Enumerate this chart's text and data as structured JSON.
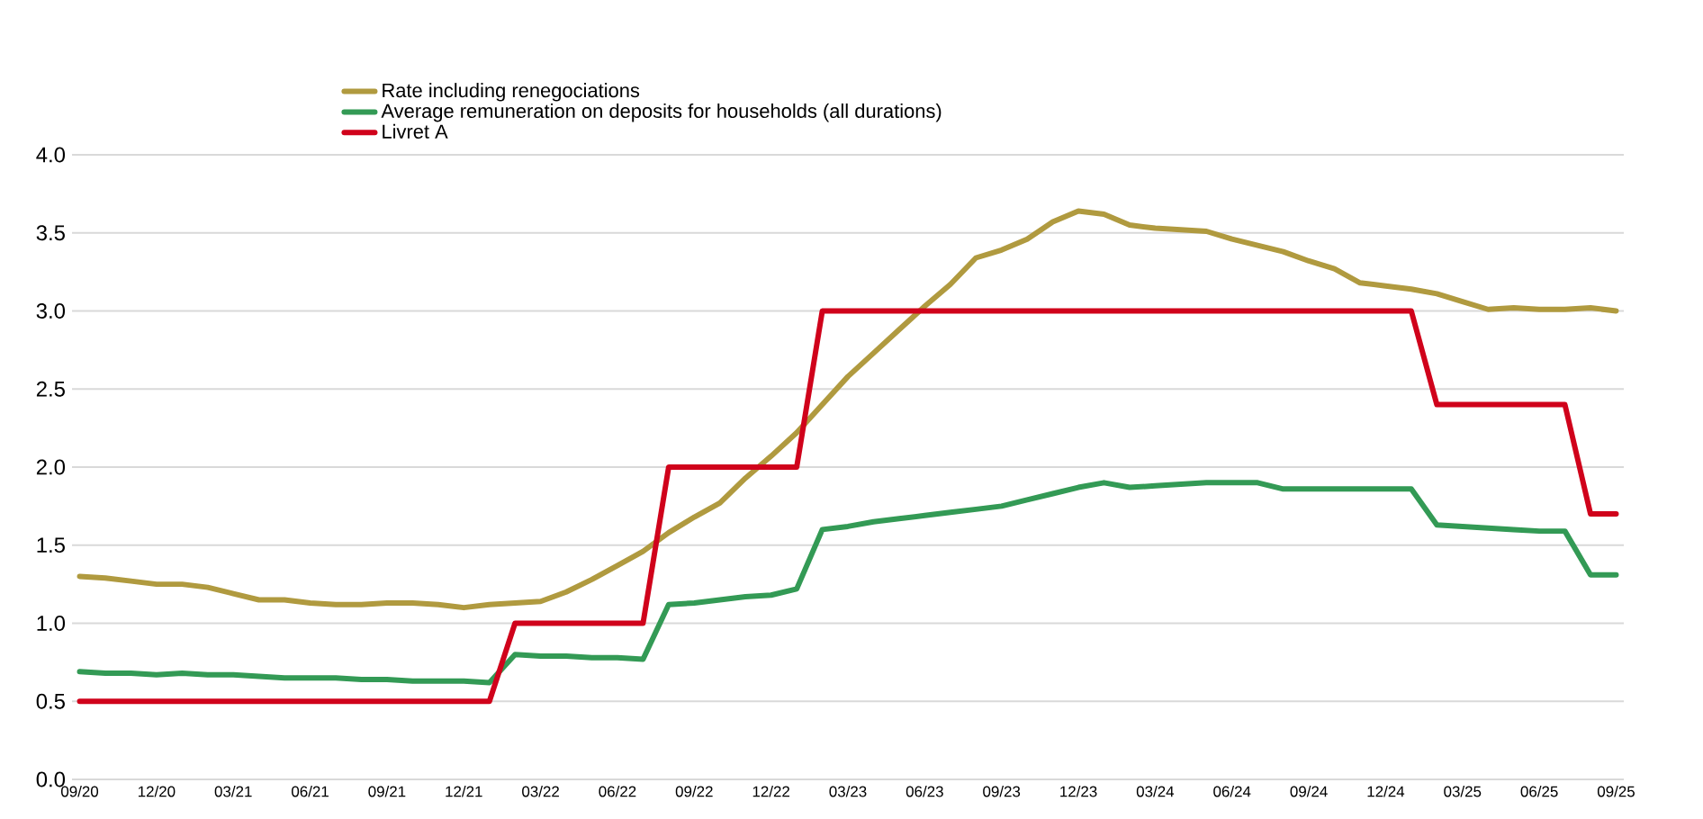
{
  "chart_data": {
    "type": "line",
    "categories": [
      "09/20",
      null,
      null,
      "12/20",
      null,
      null,
      "03/21",
      null,
      null,
      "06/21",
      null,
      null,
      "09/21",
      null,
      null,
      "12/21",
      null,
      null,
      "03/22",
      null,
      null,
      "06/22",
      null,
      null,
      "09/22",
      null,
      null,
      "12/22",
      null,
      null,
      "03/23",
      null,
      null,
      "06/23",
      null,
      null,
      "09/23",
      null,
      null,
      "12/23",
      null,
      null,
      "03/24",
      null,
      null,
      "06/24",
      null,
      null,
      "09/24",
      null,
      null,
      "12/24",
      null,
      null,
      "03/25",
      null,
      null,
      "06/25",
      null,
      null,
      "09/25"
    ],
    "series": [
      {
        "name": "Rate including renegociations",
        "color": "#b09a3f",
        "values": [
          1.3,
          1.29,
          1.27,
          1.25,
          1.25,
          1.23,
          1.19,
          1.15,
          1.15,
          1.13,
          1.12,
          1.12,
          1.13,
          1.13,
          1.12,
          1.1,
          1.12,
          1.13,
          1.14,
          1.2,
          1.28,
          1.37,
          1.46,
          1.58,
          1.68,
          1.77,
          1.93,
          2.07,
          2.22,
          2.4,
          2.58,
          2.73,
          2.88,
          3.03,
          3.17,
          3.34,
          3.39,
          3.46,
          3.57,
          3.64,
          3.62,
          3.55,
          3.53,
          3.52,
          3.51,
          3.46,
          3.42,
          3.38,
          3.32,
          3.27,
          3.18,
          3.16,
          3.14,
          3.11,
          3.06,
          3.01,
          3.02,
          3.01,
          3.01,
          3.02,
          3.0
        ]
      },
      {
        "name": "Average remuneration on deposits for households (all durations)",
        "color": "#339a55",
        "values": [
          0.69,
          0.68,
          0.68,
          0.67,
          0.68,
          0.67,
          0.67,
          0.66,
          0.65,
          0.65,
          0.65,
          0.64,
          0.64,
          0.63,
          0.63,
          0.63,
          0.62,
          0.8,
          0.79,
          0.79,
          0.78,
          0.78,
          0.77,
          1.12,
          1.13,
          1.15,
          1.17,
          1.18,
          1.22,
          1.6,
          1.62,
          1.65,
          1.67,
          1.69,
          1.71,
          1.73,
          1.75,
          1.79,
          1.83,
          1.87,
          1.9,
          1.87,
          1.88,
          1.89,
          1.9,
          1.9,
          1.9,
          1.86,
          1.86,
          1.86,
          1.86,
          1.86,
          1.86,
          1.63,
          1.62,
          1.61,
          1.6,
          1.59,
          1.59,
          1.31,
          1.31
        ]
      },
      {
        "name": "Livret A",
        "color": "#d0021b",
        "values": [
          0.5,
          0.5,
          0.5,
          0.5,
          0.5,
          0.5,
          0.5,
          0.5,
          0.5,
          0.5,
          0.5,
          0.5,
          0.5,
          0.5,
          0.5,
          0.5,
          0.5,
          1.0,
          1.0,
          1.0,
          1.0,
          1.0,
          1.0,
          2.0,
          2.0,
          2.0,
          2.0,
          2.0,
          2.0,
          3.0,
          3.0,
          3.0,
          3.0,
          3.0,
          3.0,
          3.0,
          3.0,
          3.0,
          3.0,
          3.0,
          3.0,
          3.0,
          3.0,
          3.0,
          3.0,
          3.0,
          3.0,
          3.0,
          3.0,
          3.0,
          3.0,
          3.0,
          3.0,
          2.4,
          2.4,
          2.4,
          2.4,
          2.4,
          2.4,
          1.7,
          1.7
        ]
      }
    ],
    "ylim": [
      0,
      4
    ],
    "yticks": [
      {
        "value": 0,
        "label": "0.0"
      },
      {
        "value": 0.5,
        "label": "0.5"
      },
      {
        "value": 1,
        "label": "1.0"
      },
      {
        "value": 1.5,
        "label": "1.5"
      },
      {
        "value": 2,
        "label": "2.0"
      },
      {
        "value": 2.5,
        "label": "2.5"
      },
      {
        "value": 3,
        "label": "3.0"
      },
      {
        "value": 3.5,
        "label": "3.5"
      },
      {
        "value": 4,
        "label": "4.0"
      }
    ],
    "grid": "y",
    "legend": "top",
    "marker": "none",
    "line_style": "solid"
  }
}
